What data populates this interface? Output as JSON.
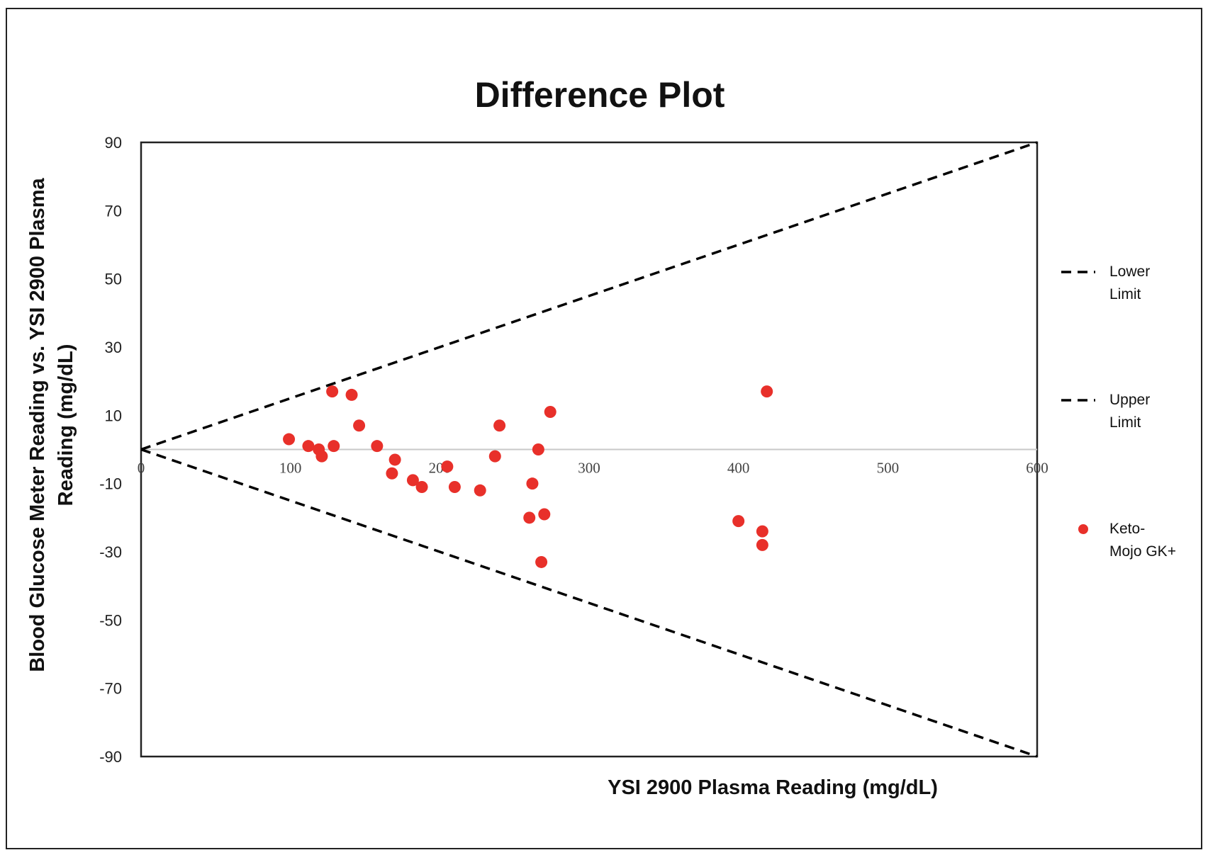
{
  "chart_data": {
    "type": "scatter",
    "title": "Difference Plot",
    "xlabel": "YSI 2900 Plasma Reading (mg/dL)",
    "ylabel_lines": [
      "Blood Glucose Meter Reading vs.  YSI 2900 Plasma",
      "Reading (mg/dL)"
    ],
    "xlim": [
      0,
      600
    ],
    "ylim": [
      -90,
      90
    ],
    "x_ticks": [
      "0",
      "100",
      "200",
      "300",
      "400",
      "500",
      "600"
    ],
    "y_ticks": [
      "90",
      "70",
      "50",
      "30",
      "10",
      "-10",
      "-30",
      "-50",
      "-70",
      "-90"
    ],
    "grid": false,
    "legend_position": "right",
    "series": [
      {
        "name": "Keto-Mojo GK+",
        "legend_lines": [
          "Keto-",
          "Mojo GK+"
        ],
        "color": "#e8302a",
        "points": [
          [
            99,
            3
          ],
          [
            112,
            1
          ],
          [
            119,
            0
          ],
          [
            121,
            -2
          ],
          [
            128,
            17
          ],
          [
            129,
            1
          ],
          [
            141,
            16
          ],
          [
            146,
            7
          ],
          [
            158,
            1
          ],
          [
            168,
            -7
          ],
          [
            170,
            -3
          ],
          [
            182,
            -9
          ],
          [
            188,
            -11
          ],
          [
            205,
            -5
          ],
          [
            210,
            -11
          ],
          [
            227,
            -12
          ],
          [
            237,
            -2
          ],
          [
            240,
            7
          ],
          [
            260,
            -20
          ],
          [
            262,
            -10
          ],
          [
            266,
            0
          ],
          [
            268,
            -33
          ],
          [
            270,
            -19
          ],
          [
            274,
            11
          ],
          [
            400,
            -21
          ],
          [
            416,
            -24
          ],
          [
            416,
            -28
          ],
          [
            419,
            17
          ]
        ]
      },
      {
        "name": "Lower Limit",
        "legend_lines": [
          "Lower",
          "Limit"
        ],
        "style": "dashed",
        "color": "#000000",
        "points": [
          [
            0,
            0
          ],
          [
            600,
            -90
          ]
        ]
      },
      {
        "name": "Upper Limit",
        "legend_lines": [
          "Upper",
          "Limit"
        ],
        "style": "dashed",
        "color": "#000000",
        "points": [
          [
            0,
            0
          ],
          [
            600,
            90
          ]
        ]
      }
    ]
  }
}
